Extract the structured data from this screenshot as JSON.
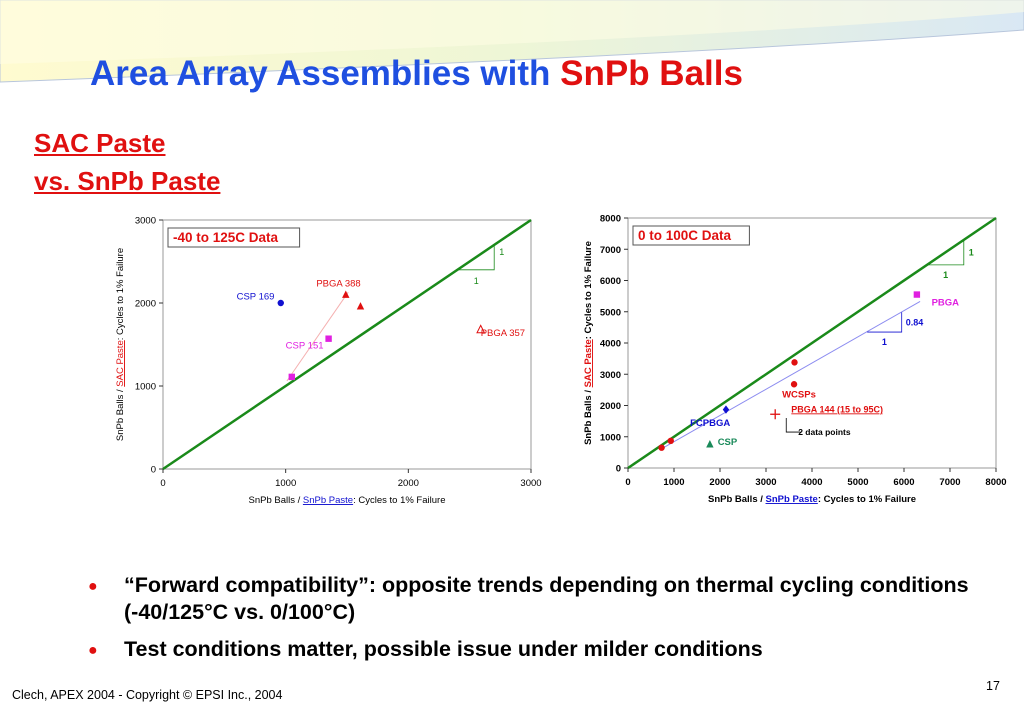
{
  "slide": {
    "title_part1": "Area Array Assemblies with",
    "title_part2": "SnPb Balls",
    "subtitle_line1": "SAC Paste",
    "subtitle_line2": "vs. SnPb Paste",
    "bullets": [
      "“Forward compatibility”: opposite trends depending on thermal cycling conditions (-40/125°C vs. 0/100°C)",
      "Test conditions matter, possible issue under milder conditions"
    ],
    "footer": "Clech, APEX 2004  -  Copyright © EPSI Inc., 2004",
    "page_number": "17",
    "colors": {
      "title_blue": "#1f4fe0",
      "accent_red": "#e01010",
      "diagonal_green": "#1a8a1a"
    }
  },
  "chart_data": [
    {
      "type": "scatter",
      "title": "-40 to 125C Data",
      "xlabel_prefix": "SnPb Balls / ",
      "xlabel_link": "SnPb Paste",
      "xlabel_suffix": ": Cycles to 1% Failure",
      "ylabel_prefix": "SnPb Balls / ",
      "ylabel_link": "SAC Paste",
      "ylabel_suffix": ": Cycles to 1% Failure",
      "xlim": [
        0,
        3000
      ],
      "ylim": [
        0,
        3000
      ],
      "xticks": [
        "0",
        "1000",
        "2000",
        "3000"
      ],
      "yticks": [
        "0",
        "1000",
        "2000",
        "3000"
      ],
      "slope_labels": [
        "1",
        "1"
      ],
      "diagonal": [
        [
          0,
          0
        ],
        [
          3000,
          3000
        ]
      ],
      "series": [
        {
          "name": "CSP 169",
          "color": "#1010d0",
          "marker": "circle",
          "points": [
            [
              960,
              2000
            ]
          ]
        },
        {
          "name": "PBGA 388",
          "color": "#e01010",
          "marker": "triangle",
          "points": [
            [
              1490,
              2100
            ],
            [
              1610,
              1960
            ]
          ]
        },
        {
          "name": "CSP 151",
          "color": "#e020e0",
          "marker": "square",
          "points": [
            [
              1350,
              1570
            ],
            [
              1050,
              1110
            ]
          ]
        },
        {
          "name": "PBGA 357",
          "color": "#e01010",
          "marker": "triangle-open",
          "points": [
            [
              2590,
              1680
            ]
          ]
        }
      ]
    },
    {
      "type": "scatter",
      "title": "0 to 100C Data",
      "xlabel_prefix": "SnPb Balls / ",
      "xlabel_link": "SnPb Paste",
      "xlabel_suffix": ": Cycles to 1% Failure",
      "ylabel_prefix": "SnPb Balls / ",
      "ylabel_link": "SAC Paste",
      "ylabel_suffix": ": Cycles to 1% Failure",
      "xlim": [
        0,
        8000
      ],
      "ylim": [
        0,
        8000
      ],
      "xticks": [
        "0",
        "1000",
        "2000",
        "3000",
        "4000",
        "5000",
        "6000",
        "7000",
        "8000"
      ],
      "yticks": [
        "0",
        "1000",
        "2000",
        "3000",
        "4000",
        "5000",
        "6000",
        "7000",
        "8000"
      ],
      "slope_labels": [
        "1",
        "1"
      ],
      "trend_slope_labels": [
        "0.84",
        "1"
      ],
      "diagonal": [
        [
          0,
          0
        ],
        [
          8000,
          8000
        ]
      ],
      "series": [
        {
          "name": "PBGA",
          "color": "#e020e0",
          "marker": "square",
          "points": [
            [
              6280,
              5550
            ]
          ]
        },
        {
          "name": "WCSPs",
          "color": "#e01010",
          "marker": "circle",
          "points": [
            [
              3620,
              3380
            ],
            [
              3610,
              2680
            ],
            [
              930,
              870
            ],
            [
              730,
              650
            ]
          ]
        },
        {
          "name": "FCPBGA",
          "color": "#1010d0",
          "marker": "diamond",
          "points": [
            [
              2130,
              1870
            ]
          ]
        },
        {
          "name": "CSP",
          "color": "#1a8a5a",
          "marker": "triangle",
          "points": [
            [
              1780,
              760
            ]
          ]
        },
        {
          "name": "PBGA 144 (15 to 95C)",
          "color": "#e01010",
          "marker": "plus",
          "points": [
            [
              3200,
              1720
            ]
          ]
        }
      ],
      "annotation": "2 data points"
    }
  ]
}
